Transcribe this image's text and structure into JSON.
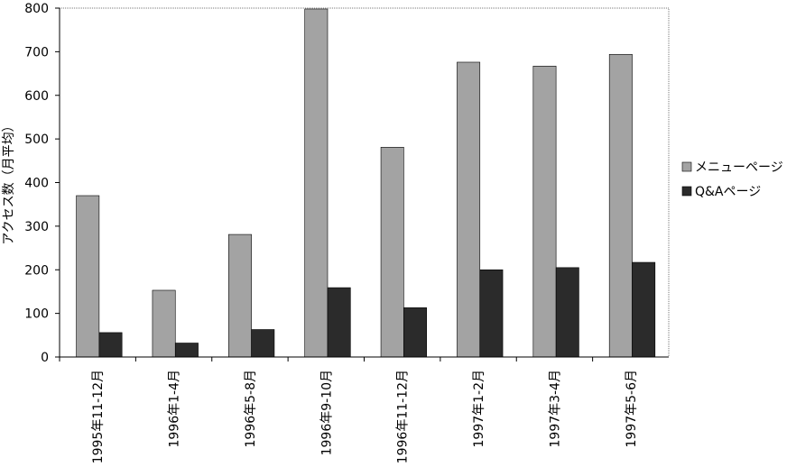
{
  "chart_data": {
    "type": "bar",
    "y_label": "アクセス数（月平均）",
    "categories": [
      "1995年11-12月",
      "1996年1-4月",
      "1996年5-8月",
      "1996年9-10月",
      "1996年11-12月",
      "1997年1-2月",
      "1997年3-4月",
      "1997年5-6月"
    ],
    "series": [
      {
        "name": "メニューページ",
        "color": "#a3a3a3",
        "values": [
          370,
          153,
          281,
          798,
          481,
          676,
          667,
          694
        ]
      },
      {
        "name": "Q&Aページ",
        "color": "#2b2b2b",
        "values": [
          56,
          32,
          63,
          159,
          113,
          200,
          205,
          217
        ]
      }
    ],
    "ylim": [
      0,
      800
    ],
    "yticks": [
      0,
      100,
      200,
      300,
      400,
      500,
      600,
      700,
      800
    ],
    "legend": "right"
  }
}
